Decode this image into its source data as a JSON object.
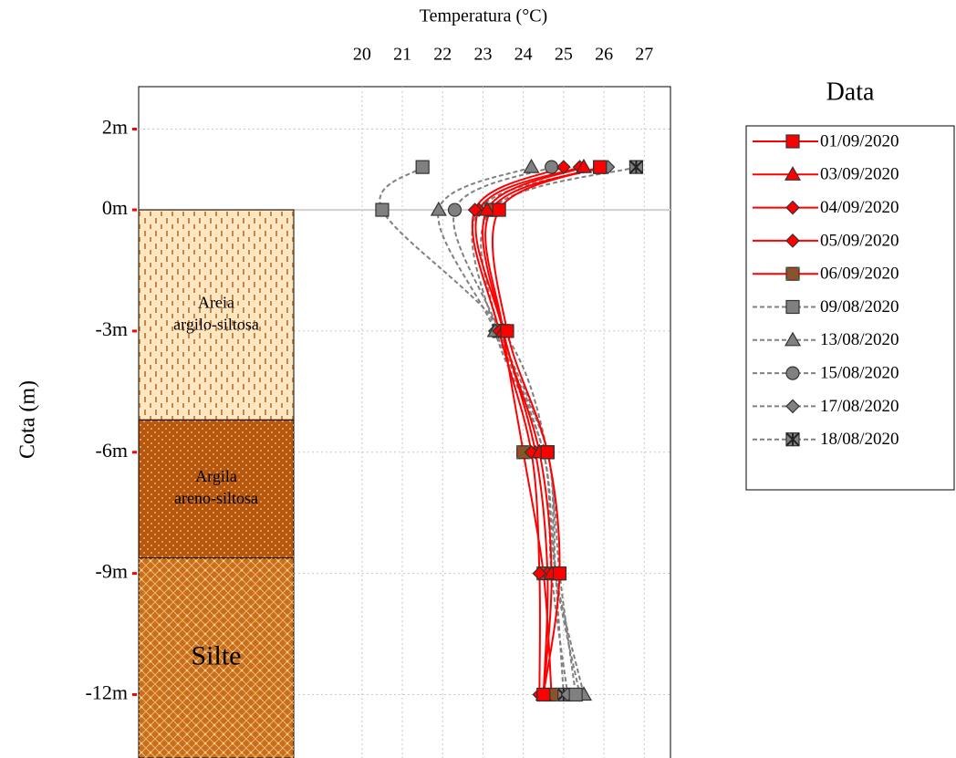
{
  "chart_data": {
    "type": "line",
    "title": "Temperatura (°C)",
    "y_label": "Cota (m)",
    "legend_title": "Data",
    "legend_position": "right",
    "xlim": [
      14.46,
      27.65
    ],
    "xticks": [
      20,
      21,
      22,
      23,
      24,
      25,
      26,
      27
    ],
    "ylim": [
      -13.57,
      3.05
    ],
    "yticks": [
      {
        "value": 2,
        "label": "2m"
      },
      {
        "value": 0,
        "label": "0m"
      },
      {
        "value": -3,
        "label": "-3m"
      },
      {
        "value": -6,
        "label": "-6m"
      },
      {
        "value": -9,
        "label": "-9m"
      },
      {
        "value": -12,
        "label": "-12m"
      }
    ],
    "grid": true,
    "y": [
      1.06,
      0,
      -3,
      -6,
      -9,
      -12
    ],
    "layers": [
      {
        "label": [
          "Areia",
          "argilo-siltosa"
        ],
        "top": 0,
        "bottom": -5.2,
        "color": "#fde6c0"
      },
      {
        "label": [
          "Argila",
          "areno-siltosa"
        ],
        "top": -5.2,
        "bottom": -8.62,
        "color": "#b8580f"
      },
      {
        "label": [
          "Silte"
        ],
        "top": -8.62,
        "bottom": -13.57,
        "color": "#c76f1d"
      }
    ],
    "series": [
      {
        "name": "01/09/2020",
        "color": "#ff0000",
        "marker_fill": "#ff0000",
        "marker": "square",
        "line_style": "solid",
        "values": [
          25.9,
          23.4,
          23.6,
          24.6,
          24.9,
          24.5
        ]
      },
      {
        "name": "03/09/2020",
        "color": "#ff0000",
        "marker_fill": "#ff0000",
        "marker": "triangle",
        "line_style": "solid",
        "values": [
          25.5,
          23.1,
          23.5,
          24.4,
          24.7,
          24.5
        ]
      },
      {
        "name": "04/09/2020",
        "color": "#ff0000",
        "marker_fill": "#ff0000",
        "marker": "diamond",
        "line_style": "solid",
        "values": [
          25.0,
          22.8,
          23.4,
          24.2,
          24.4,
          24.4
        ]
      },
      {
        "name": "05/09/2020",
        "color": "#ff0000",
        "marker_fill": "#ff0000",
        "marker": "diamond",
        "line_style": "solid",
        "values": [
          25.4,
          22.9,
          23.5,
          24.3,
          24.6,
          24.5
        ]
      },
      {
        "name": "06/09/2020",
        "color": "#ff0000",
        "marker_fill": "#b0402a",
        "marker": "cross-square",
        "line_style": "solid",
        "values": [
          25.9,
          23.2,
          23.5,
          24.0,
          24.5,
          24.7
        ]
      },
      {
        "name": "09/08/2020",
        "color": "#808080",
        "marker_fill": "#808080",
        "marker": "square",
        "line_style": "dashed",
        "values": [
          21.5,
          20.5,
          23.5,
          24.6,
          24.9,
          25.3
        ]
      },
      {
        "name": "13/08/2020",
        "color": "#808080",
        "marker_fill": "#808080",
        "marker": "triangle",
        "line_style": "dashed",
        "values": [
          24.2,
          21.9,
          23.3,
          24.5,
          24.8,
          25.5
        ]
      },
      {
        "name": "15/08/2020",
        "color": "#808080",
        "marker_fill": "#808080",
        "marker": "circle",
        "line_style": "dashed",
        "values": [
          24.7,
          22.3,
          23.4,
          24.6,
          24.8,
          25.4
        ]
      },
      {
        "name": "17/08/2020",
        "color": "#808080",
        "marker_fill": "#808080",
        "marker": "diamond",
        "line_style": "dashed",
        "values": [
          26.1,
          22.9,
          23.3,
          24.5,
          24.7,
          25.1
        ]
      },
      {
        "name": "18/08/2020",
        "color": "#808080",
        "marker_fill": "#808080",
        "marker": "asterisk-square",
        "line_style": "dashed",
        "values": [
          26.8,
          23.2,
          23.4,
          24.6,
          24.8,
          25.0
        ]
      }
    ]
  }
}
